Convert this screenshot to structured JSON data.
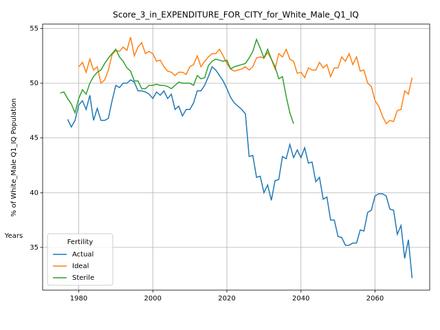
{
  "chart_data": {
    "type": "line",
    "title": "Score_3_in_EXPENDITURE_FOR_CITY_for_White_Male_Q1_IQ",
    "xlabel": "Years",
    "ylabel": "% of White_Male Q1_IQ Population",
    "x": [
      1975,
      1976,
      1977,
      1978,
      1979,
      1980,
      1981,
      1982,
      1983,
      1984,
      1985,
      1986,
      1987,
      1988,
      1989,
      1990,
      1991,
      1992,
      1993,
      1994,
      1995,
      1996,
      1997,
      1998,
      1999,
      2000,
      2001,
      2002,
      2003,
      2004,
      2005,
      2006,
      2007,
      2008,
      2009,
      2010,
      2011,
      2012,
      2013,
      2014,
      2015,
      2016,
      2017,
      2018,
      2019,
      2020,
      2021,
      2022,
      2023,
      2024,
      2025,
      2026,
      2027,
      2028,
      2029,
      2030,
      2031,
      2032,
      2033,
      2034,
      2035,
      2036,
      2037,
      2038,
      2039,
      2040,
      2041,
      2042,
      2043,
      2044,
      2045,
      2046,
      2047,
      2048,
      2049,
      2050,
      2051,
      2052,
      2053,
      2054,
      2055,
      2056,
      2057,
      2058,
      2059,
      2060,
      2061,
      2062,
      2063,
      2064,
      2065,
      2066,
      2067,
      2068,
      2069,
      2070
    ],
    "series": [
      {
        "name": "Actual",
        "color": "#1f77b4",
        "values": [
          null,
          null,
          46.7,
          46.0,
          46.6,
          48.0,
          48.4,
          47.6,
          48.9,
          46.6,
          47.7,
          46.6,
          46.6,
          46.8,
          48.4,
          49.8,
          49.6,
          50.0,
          50.0,
          50.3,
          50.1,
          49.3,
          49.3,
          49.2,
          49.0,
          48.6,
          49.2,
          48.9,
          49.3,
          48.6,
          49.0,
          47.6,
          47.9,
          47.0,
          47.6,
          47.6,
          48.2,
          49.3,
          49.3,
          49.8,
          50.6,
          51.5,
          51.2,
          50.7,
          50.2,
          49.5,
          48.7,
          48.2,
          47.9,
          47.6,
          47.2,
          43.3,
          43.4,
          41.4,
          41.5,
          40.0,
          40.7,
          39.3,
          41.1,
          41.2,
          43.3,
          43.1,
          44.4,
          43.2,
          43.9,
          43.2,
          44.1,
          42.7,
          42.8,
          41.0,
          41.4,
          39.4,
          39.6,
          37.5,
          37.5,
          36.0,
          35.9,
          35.2,
          35.2,
          35.4,
          35.4,
          36.6,
          36.5,
          38.2,
          38.4,
          39.7,
          39.9,
          39.9,
          39.7,
          38.5,
          38.4,
          36.2,
          37.0,
          34.0,
          35.7,
          32.2
        ]
      },
      {
        "name": "Ideal",
        "color": "#ff7f0e",
        "values": [
          null,
          null,
          null,
          null,
          null,
          51.5,
          51.9,
          51.0,
          52.2,
          51.2,
          51.5,
          50.0,
          50.3,
          51.2,
          52.6,
          53.0,
          52.9,
          53.3,
          53.0,
          54.2,
          52.5,
          53.3,
          53.7,
          52.7,
          52.9,
          52.7,
          52.0,
          52.1,
          51.5,
          51.1,
          51.0,
          50.7,
          51.0,
          51.0,
          50.8,
          51.5,
          51.7,
          52.5,
          51.5,
          52.0,
          52.4,
          52.7,
          52.7,
          53.1,
          52.5,
          51.8,
          51.3,
          51.1,
          51.2,
          51.3,
          51.5,
          51.2,
          51.5,
          52.3,
          52.4,
          52.3,
          52.8,
          52.2,
          51.3,
          52.7,
          52.4,
          53.1,
          52.2,
          52.0,
          50.9,
          51.0,
          50.5,
          51.4,
          51.2,
          51.2,
          51.9,
          51.4,
          51.7,
          50.6,
          51.4,
          51.4,
          52.4,
          52.0,
          52.7,
          51.7,
          52.4,
          51.1,
          51.2,
          50.0,
          49.7,
          48.4,
          47.9,
          47.0,
          46.3,
          46.6,
          46.5,
          47.5,
          47.6,
          49.3,
          49.0,
          50.5
        ]
      },
      {
        "name": "Sterile",
        "color": "#2ca02c",
        "values": [
          49.1,
          49.2,
          48.6,
          48.1,
          47.3,
          48.6,
          49.4,
          49.0,
          50.0,
          50.6,
          51.0,
          51.2,
          51.8,
          52.3,
          52.7,
          53.1,
          52.4,
          52.0,
          51.4,
          51.1,
          50.2,
          50.2,
          49.5,
          49.5,
          49.8,
          49.8,
          49.9,
          49.8,
          49.8,
          49.7,
          49.5,
          49.8,
          50.1,
          50.0,
          50.0,
          50.0,
          49.8,
          50.7,
          50.4,
          50.5,
          51.6,
          52.0,
          52.2,
          52.1,
          52.0,
          52.1,
          51.3,
          51.5,
          51.6,
          51.7,
          51.8,
          52.3,
          52.9,
          54.0,
          53.2,
          52.3,
          53.1,
          52.2,
          51.5,
          50.4,
          50.6,
          48.8,
          47.3,
          46.3,
          null,
          null,
          null,
          null,
          null,
          null,
          null,
          null,
          null,
          null,
          null,
          null,
          null,
          null,
          null,
          null,
          null,
          null,
          null,
          null,
          null,
          null,
          null,
          null,
          null,
          null,
          null,
          null,
          null,
          null,
          null,
          null
        ]
      }
    ],
    "xlim": [
      1970.25,
      2074.75
    ],
    "xticks": [
      1980,
      2000,
      2020,
      2040,
      2060
    ],
    "ylim": [
      31.1,
      55.4
    ],
    "yticks": [
      35,
      40,
      45,
      50,
      55
    ],
    "grid": true,
    "legend_title": "Fertility",
    "legend_loc": "lower left"
  }
}
